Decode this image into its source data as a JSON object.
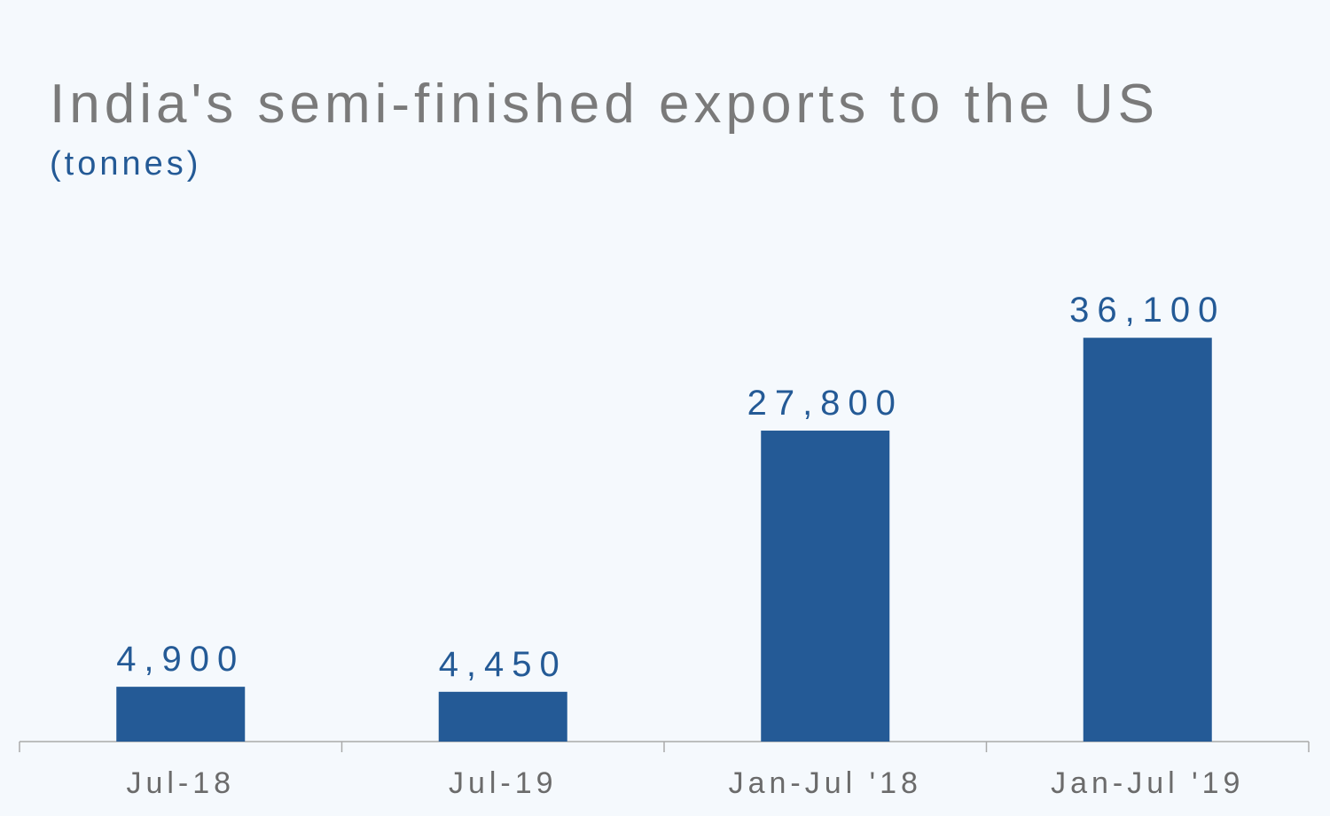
{
  "chart_data": {
    "type": "bar",
    "title": "India's semi-finished exports to the US",
    "subtitle": "(tonnes)",
    "categories": [
      "Jul-18",
      "Jul-19",
      "Jan-Jul '18",
      "Jan-Jul '19"
    ],
    "values": [
      4900,
      4450,
      27800,
      36100
    ],
    "value_labels": [
      "4,900",
      "4,450",
      "27,800",
      "36,100"
    ],
    "ylim": [
      0,
      40000
    ],
    "grid": false,
    "legend": "none",
    "colors": {
      "bar": "#245a96",
      "value_label": "#245a96",
      "title": "#7a7a7a",
      "axis": "#aaaaaa",
      "background": "#f5f9fd"
    }
  }
}
